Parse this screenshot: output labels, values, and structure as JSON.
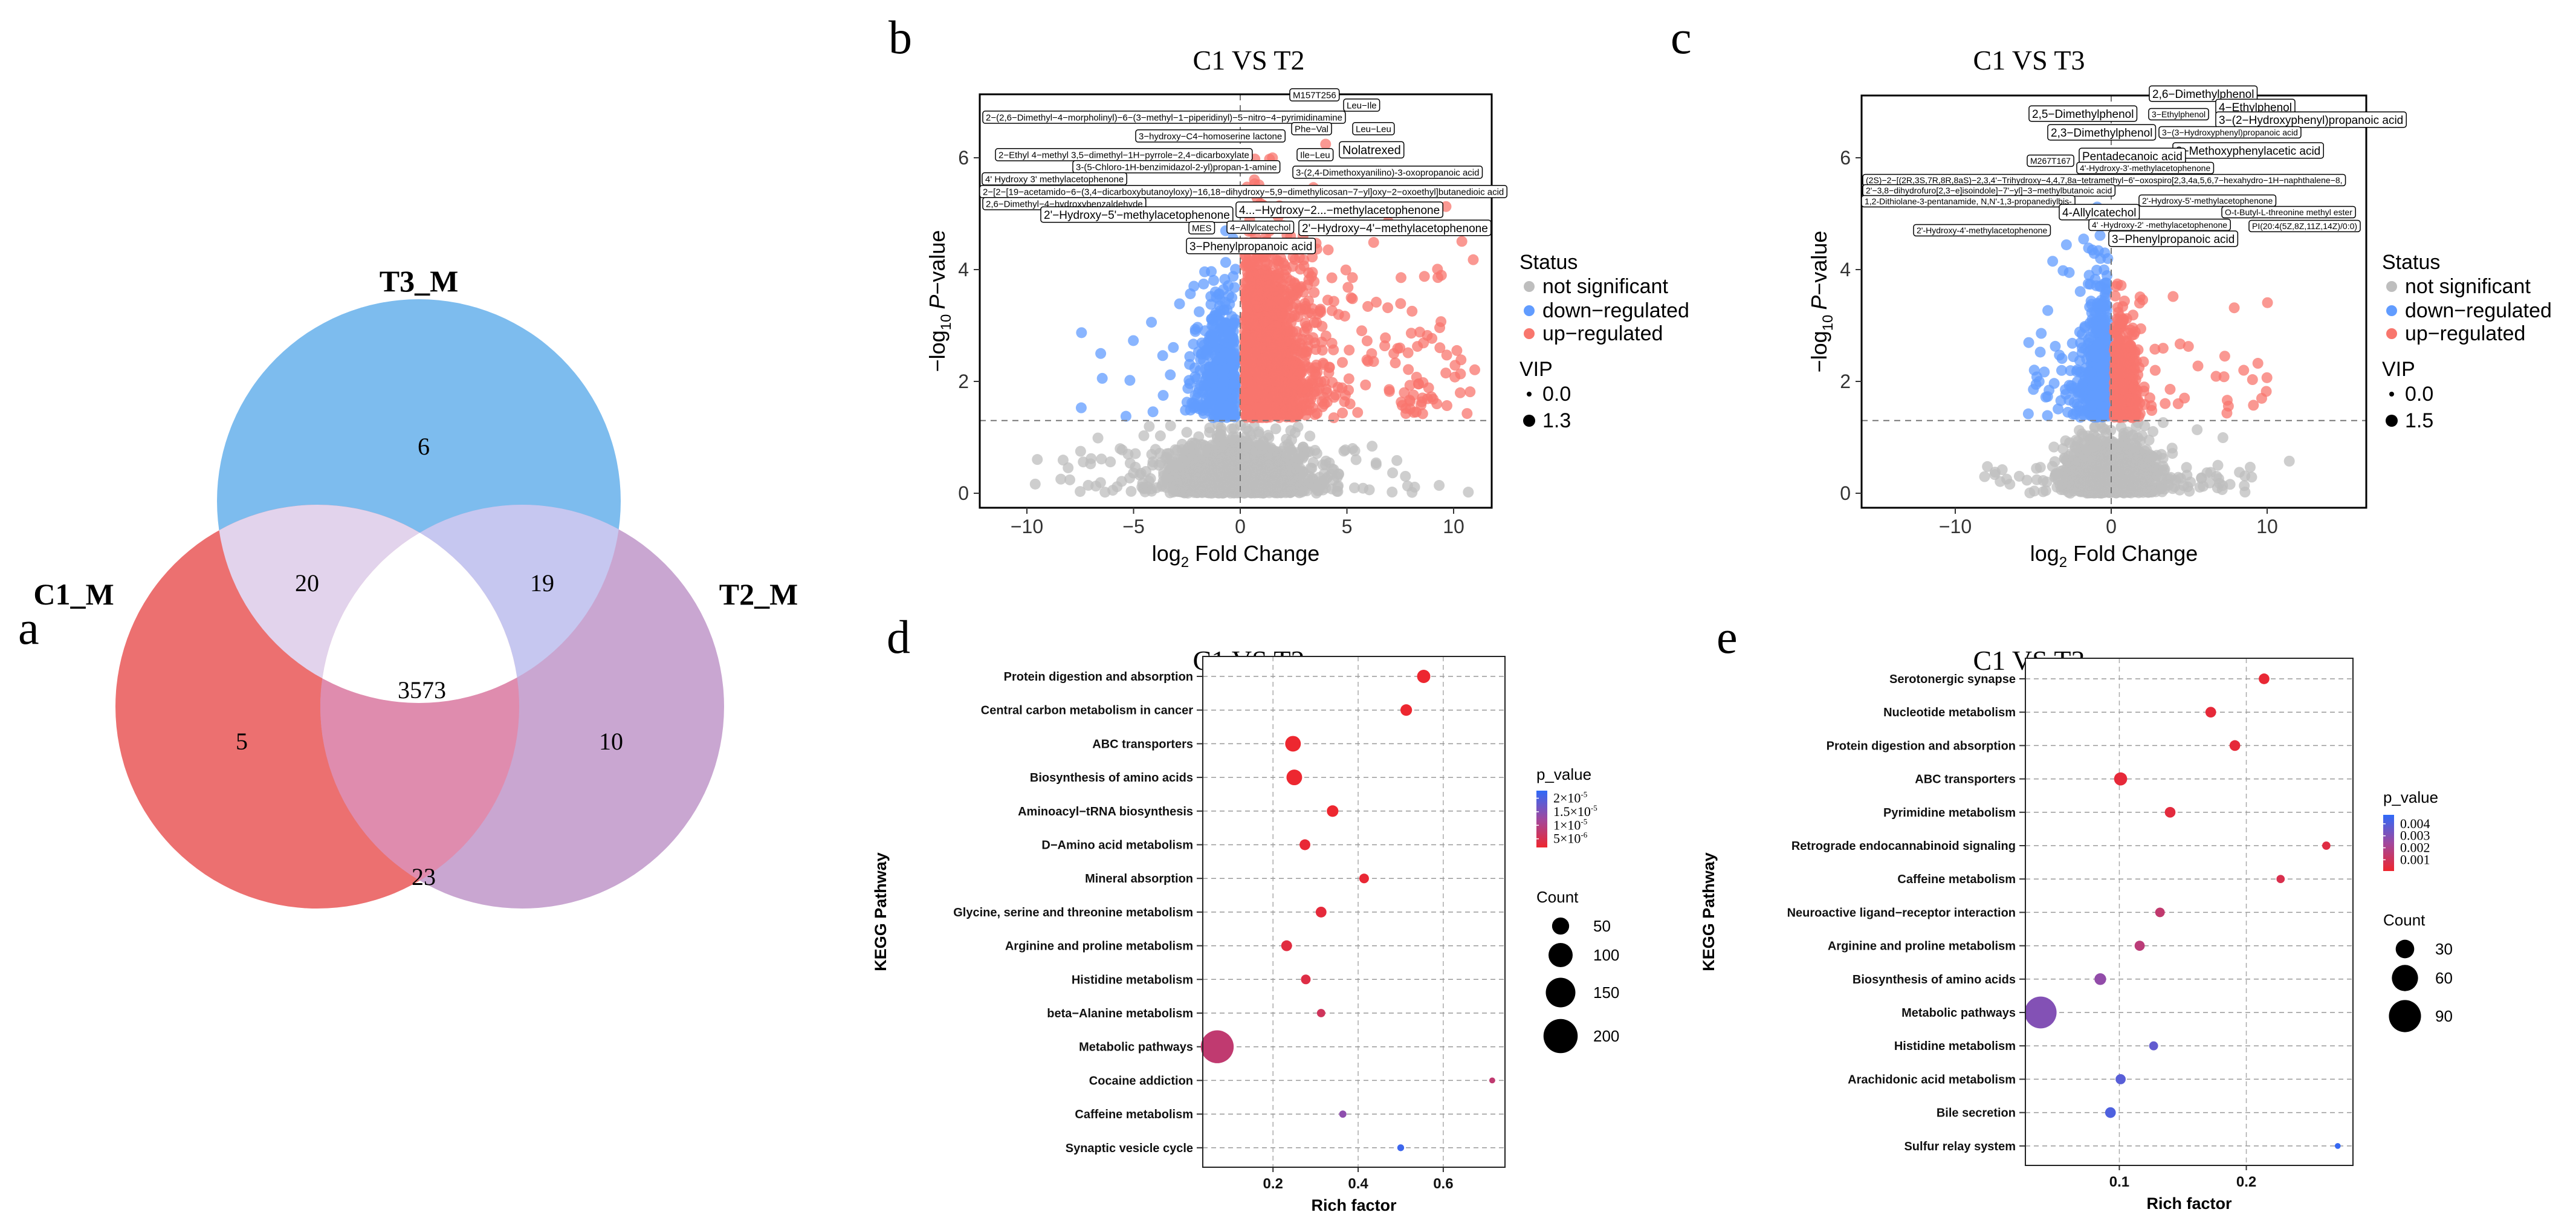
{
  "panel_letters": {
    "a": "a",
    "b": "b",
    "c": "c",
    "d": "d",
    "e": "e"
  },
  "panel_a": {
    "type": "venn",
    "sets": [
      "T3_M",
      "C1_M",
      "T2_M"
    ],
    "regions": {
      "T3_only": "6",
      "C1_only": "5",
      "T2_only": "10",
      "C1_T3": "20",
      "T3_T2": "19",
      "C1_T2": "23",
      "all": "3573"
    },
    "colors": {
      "T3_M": "#7dbcee",
      "C1_M": "#ec7070",
      "T2_M": "#c9a6d1",
      "C1_T3": "#e2d3ec",
      "T3_T2": "#c6c7f0",
      "C1_T2": "#df8cae",
      "all": "#ffffff"
    }
  },
  "chart_data": [
    {
      "type": "scatter",
      "title": "C1 VS T2",
      "xlabel": {
        "prefix": "log",
        "sub": "2",
        "suffix": " Fold Change"
      },
      "ylabel": {
        "prefix": "−log",
        "sub": "10",
        "italic": "P",
        "suffix": "−value"
      },
      "xticks": [
        "−10",
        "−5",
        "0",
        "5",
        "10"
      ],
      "xtick_values": [
        -10,
        -5,
        0,
        5,
        10
      ],
      "yticks": [
        "0",
        "2",
        "4",
        "6"
      ],
      "ytick_values": [
        0,
        2,
        4,
        6
      ],
      "xlim": [
        -12.2,
        11.8
      ],
      "ylim": [
        -0.27,
        7.3
      ],
      "threshold_y": 1.3,
      "threshold_x": 0,
      "colors": {
        "not_significant": "#bebebe",
        "down": "#619cff",
        "up": "#f8766d"
      },
      "legend": {
        "status_title": "Status",
        "status": [
          "not significant",
          "down−regulated",
          "up−regulated"
        ],
        "vip_title": "VIP",
        "vip": [
          "0.0",
          "1.3"
        ]
      },
      "labels": [
        "M157T256",
        "Leu−Ile",
        "2−(2,6−Dimethyl−4−morpholinyl)−6−(3−methyl−1−piperidinyl)−5−nitro−4−pyrimidinamine",
        "Phe−Val",
        "Leu−Leu",
        "3−hydroxy−C4−homoserine lactone",
        "Nolatrexed",
        "2−Ethyl 4−methyl 3,5−dimethyl−1H−pyrrole−2,4−dicarboxylate",
        "Ile−Leu",
        "3-(5-Chloro-1H-benzimidazol-2-yl)propan-1-amine",
        "3-(2,4-Dimethoxyanilino)-3-oxopropanoic acid",
        "4'   Hydroxy   3'   methylacetophenone",
        "2−[2−[19−acetamido−6−(3,4−dicarboxybutanoyloxy)−16,18−dihydroxy−5,9−dimethylicosan−7−yl]oxy−2−oxoethyl]butanedioic acid",
        "2,6−Dimethyl−4−hydroxybenzaldehyde",
        "4...−Hydroxy−2...−methylacetophenone",
        "2'−Hydroxy−5'−methylacetophenone",
        "MES",
        "4−Allylcatechol",
        "2'−Hydroxy−4'−methylacetophenone",
        "3−Phenylpropanoic acid"
      ]
    },
    {
      "type": "scatter",
      "title": "C1 VS T3",
      "xlabel": {
        "prefix": "log",
        "sub": "2",
        "suffix": " Fold Change"
      },
      "ylabel": {
        "prefix": "−log",
        "sub": "10",
        "italic": "P",
        "suffix": "−value"
      },
      "xticks": [
        "−10",
        "0",
        "10"
      ],
      "xtick_values": [
        -10,
        0,
        10
      ],
      "yticks": [
        "0",
        "2",
        "4",
        "6"
      ],
      "ytick_values": [
        0,
        2,
        4,
        6
      ],
      "xlim": [
        -16,
        16.4
      ],
      "ylim": [
        -0.26,
        7.1
      ],
      "threshold_y": 1.3,
      "threshold_x": 0,
      "colors": {
        "not_significant": "#bebebe",
        "down": "#619cff",
        "up": "#f8766d"
      },
      "legend": {
        "status_title": "Status",
        "status": [
          "not significant",
          "down−regulated",
          "up−regulated"
        ],
        "vip_title": "VIP",
        "vip": [
          "0.0",
          "1.5"
        ]
      },
      "labels": [
        "2,6−Dimethylphenol",
        "4−Ethylphenol",
        "2,5−Dimethylphenol",
        "3−Ethylphenol",
        "3−(2−Hydroxyphenyl)propanoic acid",
        "2,3−Dimethylphenol",
        "3−(3−Hydroxyphenyl)propanoic acid",
        "3−Methoxyphenylacetic acid",
        "Pentadecanoic acid",
        "M267T167",
        "4'-Hydroxy-3'-methylacetophenone",
        "(2S)−2−[(2R,3S,7R,8R,8aS)−2,3,4'−Trihydroxy−4,4,7,8a−tetramethyl−6'−oxospiro[2,3,4a,5,6,7−hexahydro−1H−naphthalene−8,",
        "2'−3,8−dihydrofuro[2,3−e]isoindole]−7'−yl]−3−methylbutanoic acid",
        "1,2-Dithiolane-3-pentanamide, N,N'-1,3-propanediylbis-",
        "2'-Hydroxy-5'-methylacetophenone",
        "4-Allylcatechol",
        "O-t-Butyl-L-threonine methyl ester",
        "4'  -Hydroxy-2'  -methylacetophenone",
        "PI(20:4(5Z,8Z,11Z,14Z)/0:0)",
        "2'-Hydroxy-4'-methylacetophenone",
        "3−Phenylpropanoic acid"
      ]
    },
    {
      "type": "scatter",
      "title": "C1 VS T2",
      "xlabel": "Rich factor",
      "ylabel": "KEGG Pathway",
      "xticks": [
        "0.2",
        "0.4",
        "0.6"
      ],
      "xtick_values": [
        0.2,
        0.4,
        0.6
      ],
      "xlim": [
        0.035,
        0.745
      ],
      "pathways": [
        {
          "name": "Protein digestion and absorption",
          "rich_factor": 0.554,
          "count": 30,
          "p_value": 2e-06
        },
        {
          "name": "Central carbon metabolism in cancer",
          "rich_factor": 0.513,
          "count": 23,
          "p_value": 2e-06
        },
        {
          "name": "ABC transporters",
          "rich_factor": 0.247,
          "count": 42,
          "p_value": 2e-06
        },
        {
          "name": "Biosynthesis of amino acids",
          "rich_factor": 0.25,
          "count": 42,
          "p_value": 2e-06
        },
        {
          "name": "Aminoacyl−tRNA biosynthesis",
          "rich_factor": 0.34,
          "count": 23,
          "p_value": 2e-06
        },
        {
          "name": "D−Amino acid metabolism",
          "rich_factor": 0.275,
          "count": 20,
          "p_value": 2.5e-06
        },
        {
          "name": "Mineral absorption",
          "rich_factor": 0.414,
          "count": 16,
          "p_value": 2.5e-06
        },
        {
          "name": "Glycine, serine and threonine metabolism",
          "rich_factor": 0.313,
          "count": 20,
          "p_value": 3e-06
        },
        {
          "name": "Arginine and proline metabolism",
          "rich_factor": 0.232,
          "count": 20,
          "p_value": 3.5e-06
        },
        {
          "name": "Histidine metabolism",
          "rich_factor": 0.277,
          "count": 16,
          "p_value": 4e-06
        },
        {
          "name": "beta−Alanine metabolism",
          "rich_factor": 0.313,
          "count": 12,
          "p_value": 6e-06
        },
        {
          "name": "Metabolic pathways",
          "rich_factor": 0.069,
          "count": 185,
          "p_value": 8e-06
        },
        {
          "name": "Cocaine addiction",
          "rich_factor": 0.715,
          "count": 6,
          "p_value": 8e-06
        },
        {
          "name": "Caffeine metabolism",
          "rich_factor": 0.364,
          "count": 9,
          "p_value": 1.4e-05
        },
        {
          "name": "Synaptic vesicle cycle",
          "rich_factor": 0.5,
          "count": 8,
          "p_value": 2.15e-05
        }
      ],
      "legend": {
        "color_title": "p_value",
        "p_range": [
          1.8e-06,
          2.28e-05
        ],
        "color_ticks": [
          {
            "value": 2e-05,
            "base": "2×10",
            "exp": "-5"
          },
          {
            "value": 1.5e-05,
            "base": "1.5×10",
            "exp": "-5"
          },
          {
            "value": 1e-05,
            "base": "1×10",
            "exp": "-5"
          },
          {
            "value": 5e-06,
            "base": "5×10",
            "exp": "-6"
          }
        ],
        "size_title": "Count",
        "size_ticks": [
          "50",
          "100",
          "150",
          "200"
        ],
        "size_values": [
          50,
          100,
          150,
          200
        ]
      },
      "colors": {
        "low_p": "#ee262e",
        "high_p": "#2f6af8"
      }
    },
    {
      "type": "scatter",
      "title": "C1 VS T3",
      "xlabel": "Rich factor",
      "ylabel": "KEGG Pathway",
      "xticks": [
        "0.1",
        "0.2"
      ],
      "xtick_values": [
        0.1,
        0.2
      ],
      "xlim": [
        0.026,
        0.284
      ],
      "pathways": [
        {
          "name": "Serotonergic synapse",
          "rich_factor": 0.214,
          "count": 10,
          "p_value": 0.0002
        },
        {
          "name": "Nucleotide metabolism",
          "rich_factor": 0.172,
          "count": 10,
          "p_value": 0.0003
        },
        {
          "name": "Protein digestion and absorption",
          "rich_factor": 0.191,
          "count": 10,
          "p_value": 0.0003
        },
        {
          "name": "ABC transporters",
          "rich_factor": 0.101,
          "count": 15,
          "p_value": 0.0003
        },
        {
          "name": "Pyrimidine metabolism",
          "rich_factor": 0.14,
          "count": 10,
          "p_value": 0.0004
        },
        {
          "name": "Retrograde endocannabinoid signaling",
          "rich_factor": 0.263,
          "count": 6,
          "p_value": 0.0005
        },
        {
          "name": "Caffeine metabolism",
          "rich_factor": 0.227,
          "count": 6,
          "p_value": 0.0007
        },
        {
          "name": "Neuroactive ligand−receptor interaction",
          "rich_factor": 0.132,
          "count": 8,
          "p_value": 0.0014
        },
        {
          "name": "Arginine and proline metabolism",
          "rich_factor": 0.116,
          "count": 9,
          "p_value": 0.0016
        },
        {
          "name": "Biosynthesis of amino acids",
          "rich_factor": 0.085,
          "count": 12,
          "p_value": 0.0027
        },
        {
          "name": "Metabolic pathways",
          "rich_factor": 0.038,
          "count": 89,
          "p_value": 0.003
        },
        {
          "name": "Histidine metabolism",
          "rich_factor": 0.127,
          "count": 7,
          "p_value": 0.0037
        },
        {
          "name": "Arachidonic acid metabolism",
          "rich_factor": 0.101,
          "count": 9,
          "p_value": 0.0039
        },
        {
          "name": "Bile secretion",
          "rich_factor": 0.093,
          "count": 10,
          "p_value": 0.0041
        },
        {
          "name": "Sulfur relay system",
          "rich_factor": 0.272,
          "count": 3,
          "p_value": 0.0046
        }
      ],
      "legend": {
        "color_title": "p_value",
        "p_range": [
          6e-05,
          0.00475
        ],
        "color_ticks": [
          {
            "value": 0.004,
            "base": "0.004",
            "exp": ""
          },
          {
            "value": 0.003,
            "base": "0.003",
            "exp": ""
          },
          {
            "value": 0.002,
            "base": "0.002",
            "exp": ""
          },
          {
            "value": 0.001,
            "base": "0.001",
            "exp": ""
          }
        ],
        "size_title": "Count",
        "size_ticks": [
          "30",
          "60",
          "90"
        ],
        "size_values": [
          30,
          60,
          90
        ]
      },
      "colors": {
        "low_p": "#ee262e",
        "high_p": "#2f6af8"
      }
    }
  ]
}
